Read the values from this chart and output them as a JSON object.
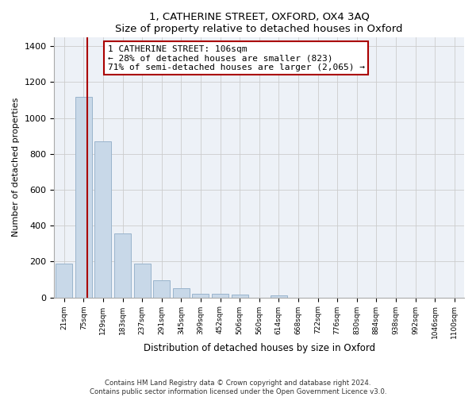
{
  "title1": "1, CATHERINE STREET, OXFORD, OX4 3AQ",
  "title2": "Size of property relative to detached houses in Oxford",
  "xlabel": "Distribution of detached houses by size in Oxford",
  "ylabel": "Number of detached properties",
  "bar_color": "#c8d8e8",
  "bar_edge_color": "#9ab4cc",
  "categories": [
    "21sqm",
    "75sqm",
    "129sqm",
    "183sqm",
    "237sqm",
    "291sqm",
    "345sqm",
    "399sqm",
    "452sqm",
    "506sqm",
    "560sqm",
    "614sqm",
    "668sqm",
    "722sqm",
    "776sqm",
    "830sqm",
    "884sqm",
    "938sqm",
    "992sqm",
    "1046sqm",
    "1100sqm"
  ],
  "values": [
    190,
    1120,
    870,
    355,
    190,
    95,
    52,
    22,
    20,
    15,
    0,
    12,
    0,
    0,
    0,
    0,
    0,
    0,
    0,
    0,
    0
  ],
  "vline_position": 1.2,
  "vline_color": "#aa0000",
  "annotation_line1": "1 CATHERINE STREET: 106sqm",
  "annotation_line2": "← 28% of detached houses are smaller (823)",
  "annotation_line3": "71% of semi-detached houses are larger (2,065) →",
  "ylim_max": 1450,
  "yticks": [
    0,
    200,
    400,
    600,
    800,
    1000,
    1200,
    1400
  ],
  "footer1": "Contains HM Land Registry data © Crown copyright and database right 2024.",
  "footer2": "Contains public sector information licensed under the Open Government Licence v3.0.",
  "grid_color": "#cccccc",
  "bg_color": "#edf1f7"
}
